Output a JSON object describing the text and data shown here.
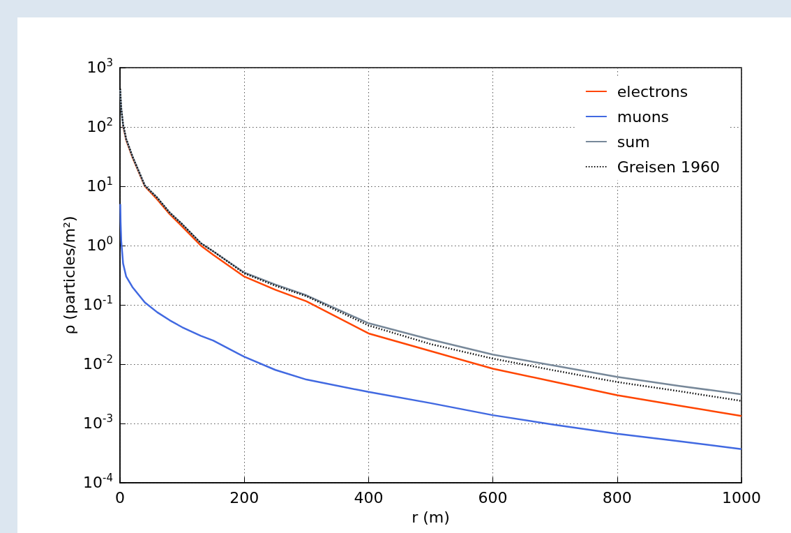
{
  "chart_data": {
    "type": "line",
    "xlabel": "r (m)",
    "ylabel": "ρ (particles/m²)",
    "x": [
      0.5,
      1,
      2,
      5,
      10,
      20,
      40,
      60,
      80,
      100,
      130,
      150,
      200,
      250,
      300,
      400,
      500,
      600,
      700,
      800,
      900,
      1000
    ],
    "series": [
      {
        "name": "electrons",
        "color": "#ff4500",
        "values": [
          null,
          null,
          null,
          105,
          60,
          31,
          10,
          6,
          3.4,
          2.1,
          1.0,
          0.7,
          0.3,
          0.18,
          0.115,
          0.033,
          0.0166,
          0.0084,
          0.005,
          0.003,
          0.002,
          0.00134
        ]
      },
      {
        "name": "muons",
        "color": "#4169e1",
        "values": [
          5,
          2.5,
          1.2,
          0.5,
          0.3,
          0.2,
          0.11,
          0.075,
          0.055,
          0.042,
          0.03,
          0.025,
          0.0133,
          0.008,
          0.0055,
          0.0034,
          0.0022,
          0.00138,
          0.00095,
          0.00067,
          0.0005,
          0.00037
        ]
      },
      {
        "name": "sum",
        "color": "#778899",
        "values": [
          420,
          310,
          205,
          108,
          62,
          32,
          10.3,
          6.4,
          3.6,
          2.3,
          1.1,
          0.8,
          0.35,
          0.22,
          0.145,
          0.049,
          0.026,
          0.0145,
          0.0094,
          0.0061,
          0.0043,
          0.0031
        ]
      },
      {
        "name": "Greisen 1960",
        "color": "#000000",
        "line_style": "dotted",
        "values": [
          440,
          320,
          210,
          110,
          63,
          32,
          10.3,
          6.4,
          3.6,
          2.3,
          1.1,
          0.8,
          0.34,
          0.21,
          0.14,
          0.045,
          0.0218,
          0.0124,
          0.0078,
          0.005,
          0.0035,
          0.0024
        ]
      }
    ],
    "xlim": [
      0,
      1000
    ],
    "xticks": [
      0,
      200,
      400,
      600,
      800,
      1000
    ],
    "ylim": [
      0.0001,
      1000
    ],
    "yticks": [
      {
        "value": 0.0001,
        "label": "10$^{-4}$"
      },
      {
        "value": 0.001,
        "label": "10$^{-3}$"
      },
      {
        "value": 0.01,
        "label": "10$^{-2}$"
      },
      {
        "value": 0.1,
        "label": "10$^{-1}$"
      },
      {
        "value": 1,
        "label": "10$^{0}$"
      },
      {
        "value": 10,
        "label": "10$^{1}$"
      },
      {
        "value": 100,
        "label": "10$^{2}$"
      },
      {
        "value": 1000,
        "label": "10$^{3}$"
      }
    ],
    "log": "y",
    "grid": true,
    "legend": "top right",
    "marker": "none",
    "line_style": "solid"
  }
}
